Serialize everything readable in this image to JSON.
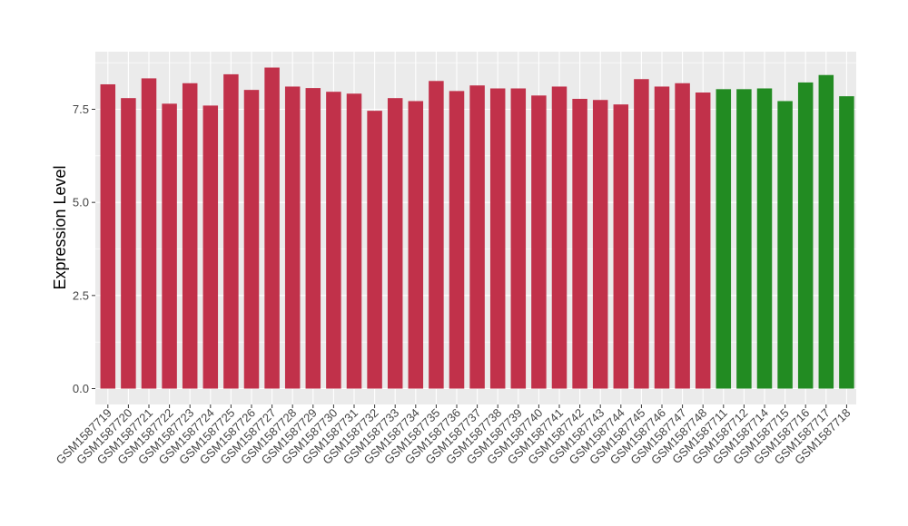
{
  "chart_data": {
    "type": "bar",
    "title": "",
    "xlabel": "",
    "ylabel": "Expression Level",
    "ylim": [
      0,
      8.9
    ],
    "yticks": [
      0.0,
      2.5,
      5.0,
      7.5
    ],
    "ytick_labels": [
      "0.0",
      "2.5",
      "5.0",
      "7.5"
    ],
    "grid": true,
    "panel_background": "#ebebeb",
    "grid_color": "#ffffff",
    "categories": [
      "GSM1587719",
      "GSM1587720",
      "GSM1587721",
      "GSM1587722",
      "GSM1587723",
      "GSM1587724",
      "GSM1587725",
      "GSM1587726",
      "GSM1587727",
      "GSM1587728",
      "GSM1587729",
      "GSM1587730",
      "GSM1587731",
      "GSM1587732",
      "GSM1587733",
      "GSM1587734",
      "GSM1587735",
      "GSM1587736",
      "GSM1587737",
      "GSM1587738",
      "GSM1587739",
      "GSM1587740",
      "GSM1587741",
      "GSM1587742",
      "GSM1587743",
      "GSM1587744",
      "GSM1587745",
      "GSM1587746",
      "GSM1587747",
      "GSM1587748",
      "GSM1587711",
      "GSM1587712",
      "GSM1587714",
      "GSM1587715",
      "GSM1587716",
      "GSM1587717",
      "GSM1587718"
    ],
    "values": [
      8.17,
      7.8,
      8.33,
      7.65,
      8.2,
      7.6,
      8.44,
      8.02,
      8.62,
      8.11,
      8.07,
      7.97,
      7.92,
      7.46,
      7.8,
      7.72,
      8.26,
      7.99,
      8.14,
      8.06,
      8.06,
      7.87,
      8.11,
      7.78,
      7.75,
      7.63,
      8.31,
      8.11,
      8.2,
      7.95,
      8.04,
      8.04,
      8.06,
      7.72,
      8.22,
      8.42,
      7.85
    ],
    "groups": [
      "red",
      "red",
      "red",
      "red",
      "red",
      "red",
      "red",
      "red",
      "red",
      "red",
      "red",
      "red",
      "red",
      "red",
      "red",
      "red",
      "red",
      "red",
      "red",
      "red",
      "red",
      "red",
      "red",
      "red",
      "red",
      "red",
      "red",
      "red",
      "red",
      "red",
      "green",
      "green",
      "green",
      "green",
      "green",
      "green",
      "green"
    ],
    "colors": {
      "red": "#c1314a",
      "green": "#228b22"
    }
  }
}
